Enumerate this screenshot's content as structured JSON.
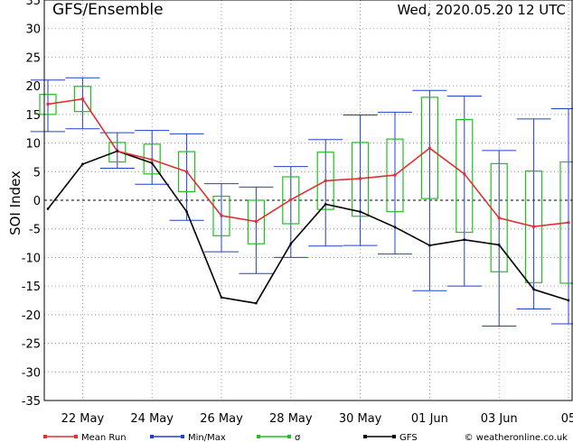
{
  "chart_data": {
    "type": "line",
    "title": "GFS/Ensemble",
    "timestamp": "Wed, 2020.05.20   12 UTC",
    "ylabel": "SOI Index",
    "ylim": [
      -35,
      35
    ],
    "yticks": [
      35,
      30,
      25,
      20,
      15,
      10,
      5,
      0,
      -5,
      -10,
      -15,
      -20,
      -25,
      -30,
      -35
    ],
    "xticks": [
      "22 May",
      "24 May",
      "26 May",
      "28 May",
      "30 May",
      "01 Jun",
      "03 Jun",
      "05"
    ],
    "grid": true,
    "legend_position": "bottom",
    "colors": {
      "mean": "#e03030",
      "minmax": "#2040d0",
      "sigma": "#20c020",
      "gfs": "#000000"
    },
    "series": [
      {
        "name": "Mean Run",
        "values": [
          16.8,
          17.7,
          8.6,
          7.1,
          5.0,
          -2.7,
          -3.7,
          0.1,
          3.4,
          3.8,
          4.4,
          9.1,
          4.6,
          -3.1,
          -4.6,
          -3.9
        ]
      },
      {
        "name": "GFS",
        "values": [
          -1.5,
          6.3,
          8.6,
          6.5,
          -2.0,
          -17.0,
          -18.0,
          -7.6,
          -0.7,
          -2.0,
          -4.7,
          -7.9,
          -6.9,
          -7.8,
          -15.6,
          -17.5
        ]
      },
      {
        "name": "Min/Max",
        "min": [
          12.0,
          12.5,
          5.6,
          2.8,
          -3.5,
          -9.0,
          -12.8,
          -10.0,
          -8.0,
          -7.9,
          -9.4,
          -15.8,
          -15.0,
          -22.0,
          -19.0,
          -21.6
        ],
        "max": [
          21.0,
          21.4,
          11.8,
          12.2,
          11.6,
          2.9,
          2.3,
          5.9,
          10.6,
          14.9,
          15.4,
          19.2,
          18.2,
          8.7,
          14.2,
          16.0
        ]
      },
      {
        "name": "σ",
        "low": [
          15.0,
          15.5,
          6.7,
          4.6,
          1.5,
          -6.2,
          -7.6,
          -4.1,
          -1.6,
          -2.8,
          -2.0,
          0.3,
          -5.6,
          -12.5,
          -14.4,
          -14.5
        ],
        "high": [
          18.5,
          19.9,
          10.1,
          9.8,
          8.5,
          0.7,
          0.0,
          4.1,
          8.4,
          10.1,
          10.7,
          18.0,
          14.1,
          6.4,
          5.1,
          6.7
        ]
      }
    ]
  },
  "legend": {
    "mean": "Mean Run",
    "minmax": "Min/Max",
    "sigma": "σ",
    "gfs": "GFS"
  },
  "credit": "© weatheronline.co.uk"
}
